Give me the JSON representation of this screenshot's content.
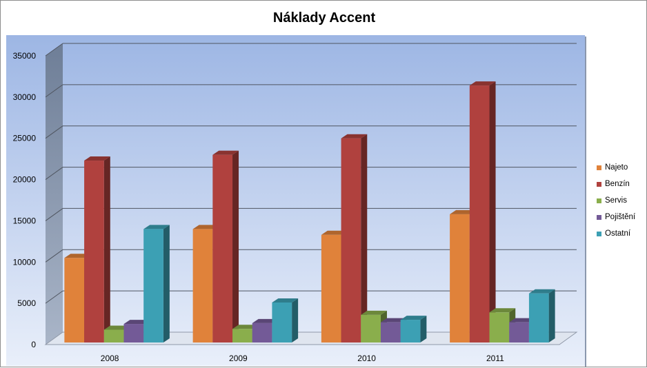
{
  "chart_data": {
    "type": "bar",
    "title": "Náklady Accent",
    "categories": [
      "2008",
      "2009",
      "2010",
      "2011"
    ],
    "series": [
      {
        "name": "Najeto",
        "color": "#e0823a",
        "values": [
          10500,
          14000,
          13300,
          15800
        ]
      },
      {
        "name": "Benzín",
        "color": "#b0413e",
        "values": [
          22300,
          23000,
          25000,
          31400
        ]
      },
      {
        "name": "Servis",
        "color": "#8aae4c",
        "values": [
          1800,
          1900,
          3600,
          3900
        ]
      },
      {
        "name": "Pojištění",
        "color": "#735a97",
        "values": [
          2500,
          2600,
          2700,
          2700
        ]
      },
      {
        "name": "Ostatní",
        "color": "#3ca0b4",
        "values": [
          14000,
          5100,
          3000,
          6200
        ]
      }
    ],
    "yticks": [
      0,
      5000,
      10000,
      15000,
      20000,
      25000,
      30000,
      35000
    ],
    "ylim": [
      0,
      35000
    ],
    "grid": true,
    "legend": "right",
    "style": "3d-clustered-column"
  }
}
